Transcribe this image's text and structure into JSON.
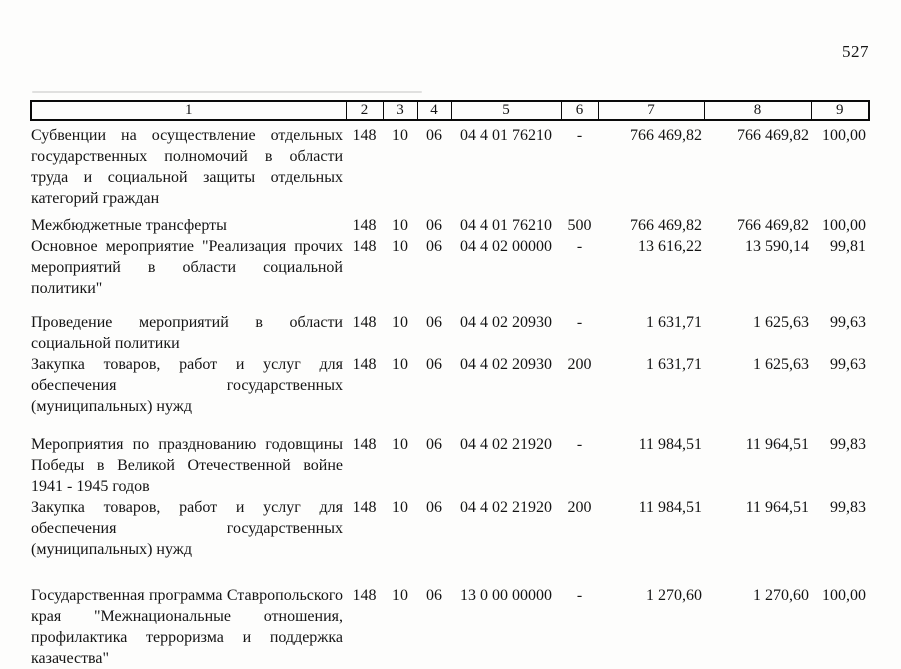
{
  "page_number": "527",
  "table": {
    "headers": [
      "1",
      "2",
      "3",
      "4",
      "5",
      "6",
      "7",
      "8",
      "9"
    ],
    "rows": [
      {
        "cells": [
          "Субвенции на осуществление отдельных государственных полномочий в области труда и социальной защиты отдельных категорий граждан",
          "148",
          "10",
          "06",
          "04 4 01 76210",
          "-",
          "766 469,82",
          "766 469,82",
          "100,00"
        ]
      },
      {
        "cells": [
          "Межбюджетные трансферты",
          "148",
          "10",
          "06",
          "04 4 01 76210",
          "500",
          "766 469,82",
          "766 469,82",
          "100,00"
        ]
      },
      {
        "cells": [
          "Основное мероприятие \"Реализация прочих мероприятий в области социальной политики\"",
          "148",
          "10",
          "06",
          "04 4 02 00000",
          "-",
          "13 616,22",
          "13 590,14",
          "99,81"
        ]
      },
      {
        "cells": [
          "Проведение мероприятий в области социальной политики",
          "148",
          "10",
          "06",
          "04 4 02 20930",
          "-",
          "1 631,71",
          "1 625,63",
          "99,63"
        ]
      },
      {
        "cells": [
          "Закупка товаров, работ и услуг для обеспечения государственных (муниципальных) нужд",
          "148",
          "10",
          "06",
          "04 4 02 20930",
          "200",
          "1 631,71",
          "1 625,63",
          "99,63"
        ]
      },
      {
        "cells": [
          "Мероприятия по празднованию годовщины Победы в Великой Отечественной войне 1941 - 1945 годов",
          "148",
          "10",
          "06",
          "04 4 02 21920",
          "-",
          "11 984,51",
          "11 964,51",
          "99,83"
        ]
      },
      {
        "cells": [
          "Закупка товаров, работ и услуг для обеспечения государственных (муниципальных) нужд",
          "148",
          "10",
          "06",
          "04 4 02 21920",
          "200",
          "11 984,51",
          "11 964,51",
          "99,83"
        ]
      },
      {
        "cells": [
          "Государственная программа Ставропольского края \"Межнациональные отношения, профилактика терроризма и поддержка казачества\"",
          "148",
          "10",
          "06",
          "13 0 00 00000",
          "-",
          "1 270,60",
          "1 270,60",
          "100,00"
        ]
      }
    ]
  }
}
